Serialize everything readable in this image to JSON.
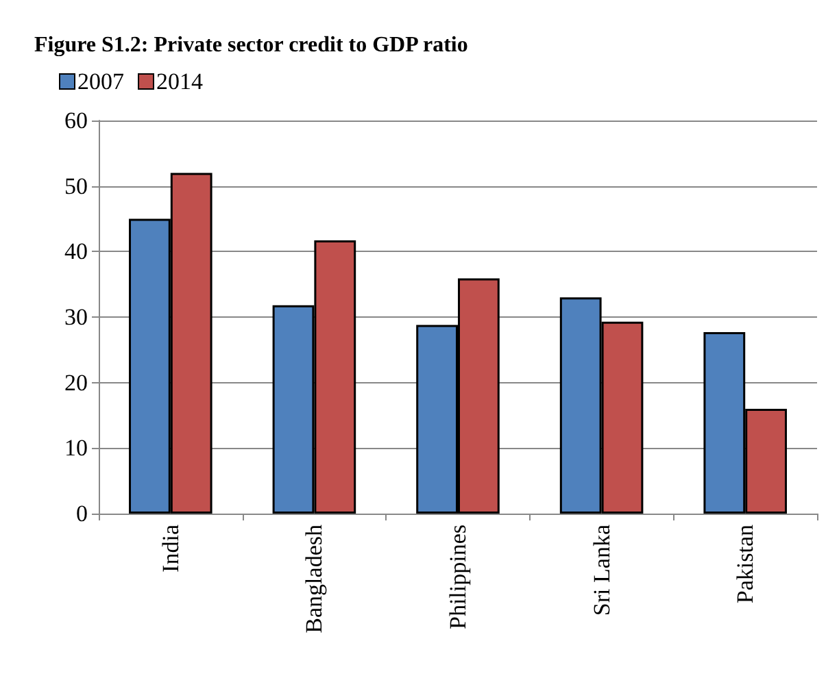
{
  "chart_data": {
    "type": "bar",
    "title": "Figure S1.2: Private sector credit to GDP ratio",
    "categories": [
      "India",
      "Bangladesh",
      "Philippines",
      "Sri Lanka",
      "Pakistan"
    ],
    "series": [
      {
        "name": "2007",
        "color": "#4f81bd",
        "values": [
          45,
          31.8,
          28.8,
          33,
          27.7
        ]
      },
      {
        "name": "2014",
        "color": "#c0504d",
        "values": [
          52,
          41.7,
          35.9,
          29.3,
          16
        ]
      }
    ],
    "ylim": [
      0,
      60
    ],
    "yticks": [
      0,
      10,
      20,
      30,
      40,
      50,
      60
    ],
    "grid": "y",
    "legend": "top left"
  }
}
